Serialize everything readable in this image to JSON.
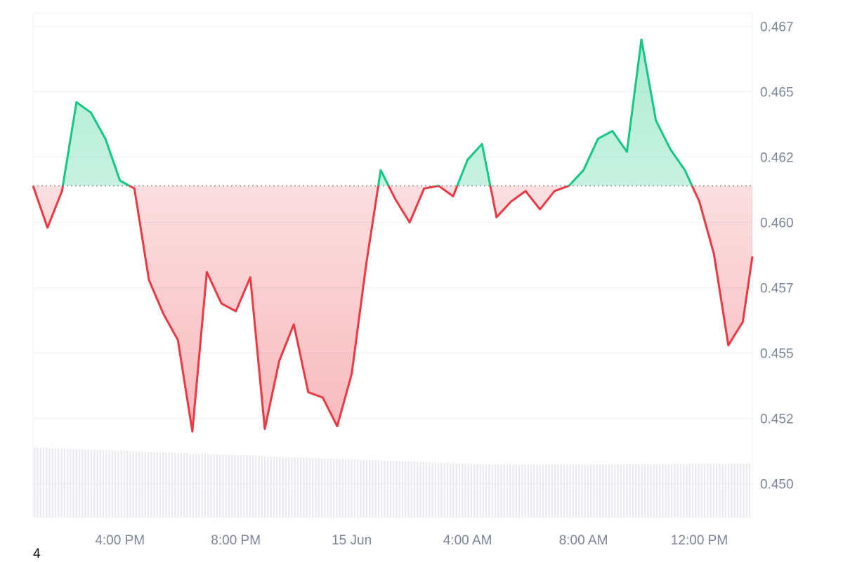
{
  "chart_data": {
    "type": "area",
    "title": "",
    "xlabel": "",
    "ylabel": "",
    "x_ticks": [
      "4:00 PM",
      "8:00 PM",
      "15 Jun",
      "4:00 AM",
      "8:00 AM",
      "12:00 PM"
    ],
    "y_ticks": [
      "0.450",
      "0.452",
      "0.455",
      "0.457",
      "0.460",
      "0.462",
      "0.465",
      "0.467"
    ],
    "ylim": [
      0.4487,
      0.468
    ],
    "baseline": 0.4614,
    "colors": {
      "above": "#16c784",
      "below": "#ea3943",
      "grid": "#eef0f3",
      "volume": "#e9ebef"
    },
    "grid": true,
    "series": [
      {
        "x_hours": [
          13.0,
          13.5,
          14.0,
          14.5,
          15.0,
          15.5,
          16.0,
          16.5,
          17.0,
          17.5,
          18.0,
          18.5,
          19.0,
          19.5,
          20.0,
          20.5,
          21.0,
          21.5,
          22.0,
          22.5,
          23.0,
          23.5,
          24.0,
          24.5,
          25.0,
          25.5,
          26.0,
          26.5,
          27.0,
          27.5,
          28.0,
          28.5,
          29.0,
          29.5,
          30.0,
          30.5,
          31.0,
          31.5,
          32.0,
          32.5,
          33.0,
          33.5,
          34.0,
          34.5,
          35.0,
          35.5,
          36.0,
          36.5,
          37.0,
          37.5,
          37.83
        ],
        "values": [
          0.4614,
          0.4598,
          0.4612,
          0.4646,
          0.4642,
          0.4632,
          0.4616,
          0.4613,
          0.4578,
          0.4565,
          0.4555,
          0.452,
          0.4581,
          0.4569,
          0.4566,
          0.4579,
          0.4521,
          0.4547,
          0.4561,
          0.4535,
          0.4533,
          0.4522,
          0.4542,
          0.4584,
          0.462,
          0.4609,
          0.46,
          0.4613,
          0.4614,
          0.461,
          0.4624,
          0.463,
          0.4602,
          0.4608,
          0.4612,
          0.4605,
          0.4612,
          0.4614,
          0.462,
          0.4632,
          0.4635,
          0.4627,
          0.467,
          0.4639,
          0.4628,
          0.462,
          0.4608,
          0.4588,
          0.4553,
          0.4562,
          0.4587
        ],
        "data_points_note": ""
      }
    ]
  },
  "x_tick_hours": [
    16,
    20,
    24,
    28,
    32,
    36
  ],
  "corner_label": "4"
}
